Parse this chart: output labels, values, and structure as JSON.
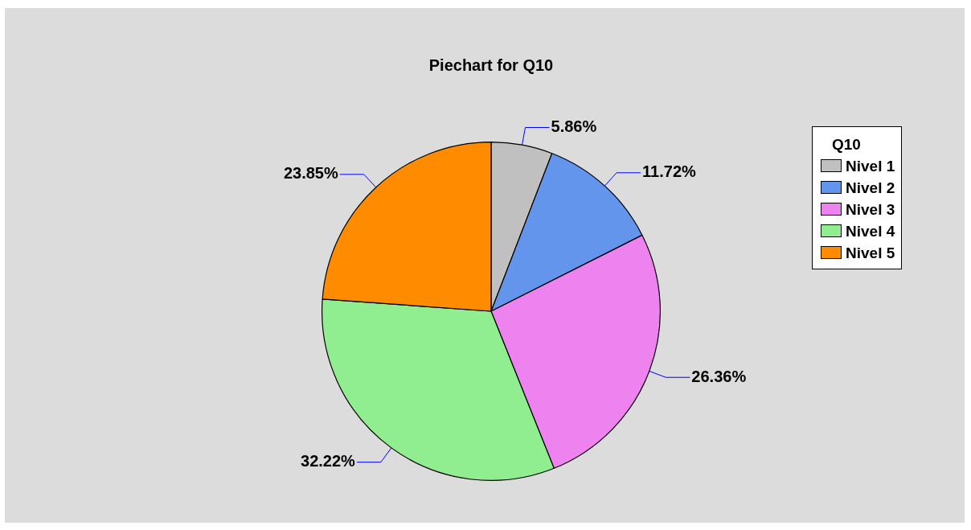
{
  "chart_data": {
    "type": "pie",
    "title": "Piechart for Q10",
    "legend_title": "Q10",
    "legend": "right",
    "categories": [
      "Nivel 1",
      "Nivel 2",
      "Nivel 3",
      "Nivel 4",
      "Nivel 5"
    ],
    "values": [
      5.86,
      11.72,
      26.36,
      32.22,
      23.85
    ],
    "colors": [
      "#c0c0c0",
      "#6495ed",
      "#ee82ee",
      "#90ee90",
      "#ff8c00"
    ],
    "value_labels": [
      "5.86%",
      "11.72%",
      "26.36%",
      "32.22%",
      "23.85%"
    ]
  }
}
